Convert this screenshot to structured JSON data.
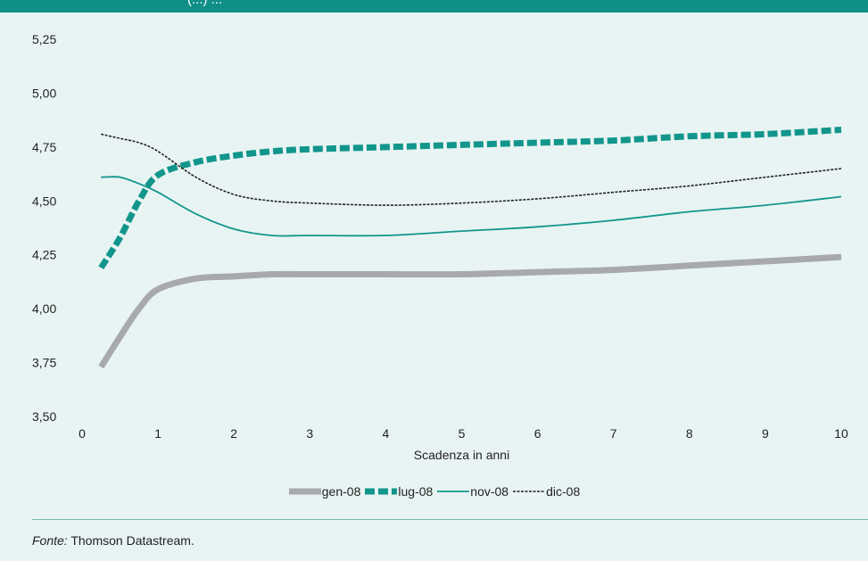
{
  "header": {
    "title_fragment": "(...) ..."
  },
  "chart_data": {
    "type": "line",
    "title": "",
    "xlabel": "Scadenza in anni",
    "ylabel": "",
    "xlim": [
      0,
      10
    ],
    "ylim": [
      3.5,
      5.25
    ],
    "x_ticks": [
      "0",
      "1",
      "2",
      "3",
      "4",
      "5",
      "6",
      "7",
      "8",
      "9",
      "10"
    ],
    "y_ticks": [
      "3,50",
      "3,75",
      "4,00",
      "4,25",
      "4,50",
      "4,75",
      "5,00",
      "5,25"
    ],
    "grid": false,
    "legend_position": "bottom",
    "x": [
      0.25,
      0.5,
      0.75,
      1,
      1.5,
      2,
      2.5,
      3,
      4,
      5,
      6,
      7,
      8,
      9,
      10
    ],
    "series": [
      {
        "name": "gen-08",
        "color": "#a7a9ac",
        "style": "thick",
        "values": [
          3.73,
          3.87,
          4.0,
          4.09,
          4.14,
          4.15,
          4.16,
          4.16,
          4.16,
          4.16,
          4.17,
          4.18,
          4.2,
          4.22,
          4.24
        ]
      },
      {
        "name": "lug-08",
        "color": "#12968c",
        "style": "thick-dashed",
        "values": [
          4.19,
          4.33,
          4.5,
          4.62,
          4.68,
          4.71,
          4.73,
          4.74,
          4.75,
          4.76,
          4.77,
          4.78,
          4.8,
          4.81,
          4.83
        ]
      },
      {
        "name": "nov-08",
        "color": "#12968c",
        "style": "thin",
        "values": [
          4.61,
          4.61,
          4.58,
          4.54,
          4.44,
          4.37,
          4.34,
          4.34,
          4.34,
          4.36,
          4.38,
          4.41,
          4.45,
          4.48,
          4.52
        ]
      },
      {
        "name": "dic-08",
        "color": "#222222",
        "style": "thin-dotted",
        "values": [
          4.81,
          4.79,
          4.77,
          4.73,
          4.61,
          4.53,
          4.5,
          4.49,
          4.48,
          4.49,
          4.51,
          4.54,
          4.57,
          4.61,
          4.65
        ]
      }
    ]
  },
  "source": {
    "label": "Fonte:",
    "text": " Thomson Datastream."
  }
}
